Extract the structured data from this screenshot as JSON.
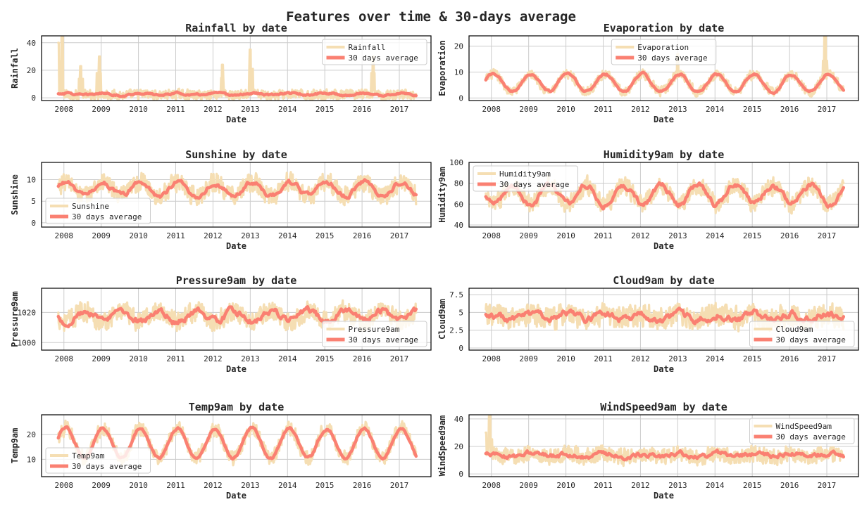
{
  "title": "Features over time & 30-days average",
  "colors": {
    "raw": "#f5deb3",
    "avg": "#fa8072",
    "grid": "#cccccc",
    "frame": "#000000"
  },
  "chart_data": [
    {
      "type": "line",
      "title": "Rainfall by date",
      "xlabel": "Date",
      "ylabel": "Rainfall",
      "x_range": [
        2007.4,
        2017.85
      ],
      "ylim": [
        -2,
        45
      ],
      "yticks": [
        0,
        20,
        40
      ],
      "xticks": [
        2008,
        2009,
        2010,
        2011,
        2012,
        2013,
        2014,
        2015,
        2016,
        2017
      ],
      "legend": "upper right",
      "series": [
        {
          "name": "Rainfall",
          "x_start": 2007.85,
          "x_end": 2017.45,
          "baseline": 2.2,
          "seasonal_amp": 0.3,
          "noise": 5,
          "spikes": [
            [
              2007.85,
              40
            ],
            [
              2007.95,
              44
            ],
            [
              2008.45,
              23
            ],
            [
              2008.95,
              30
            ],
            [
              2012.25,
              24
            ],
            [
              2013.0,
              35
            ],
            [
              2016.3,
              30
            ]
          ]
        },
        {
          "name": "30 days average",
          "x_start": 2007.85,
          "x_end": 2017.45,
          "baseline": 2.6,
          "seasonal_amp": 0.8,
          "noise": 0.6
        }
      ]
    },
    {
      "type": "line",
      "title": "Evaporation by date",
      "xlabel": "Date",
      "ylabel": "Evaporation",
      "x_range": [
        2007.4,
        2017.85
      ],
      "ylim": [
        -1,
        24
      ],
      "yticks": [
        0,
        10,
        20
      ],
      "xticks": [
        2008,
        2009,
        2010,
        2011,
        2012,
        2013,
        2014,
        2015,
        2016,
        2017
      ],
      "legend": "upper center",
      "series": [
        {
          "name": "Evaporation",
          "x_start": 2007.85,
          "x_end": 2017.45,
          "baseline": 5.8,
          "seasonal_amp": 3.4,
          "noise": 2.5,
          "spikes": [
            [
              2016.95,
              24
            ],
            [
              2013.0,
              17
            ]
          ]
        },
        {
          "name": "30 days average",
          "x_start": 2007.85,
          "x_end": 2017.45,
          "baseline": 5.8,
          "seasonal_amp": 3.4,
          "noise": 0.4
        }
      ]
    },
    {
      "type": "line",
      "title": "Sunshine by date",
      "xlabel": "Date",
      "ylabel": "Sunshine",
      "x_range": [
        2007.4,
        2017.85
      ],
      "ylim": [
        -1,
        14
      ],
      "yticks": [
        0,
        5,
        10
      ],
      "xticks": [
        2008,
        2009,
        2010,
        2011,
        2012,
        2013,
        2014,
        2015,
        2016,
        2017
      ],
      "legend": "lower left",
      "series": [
        {
          "name": "Sunshine",
          "x_start": 2007.85,
          "x_end": 2017.45,
          "baseline": 7.8,
          "seasonal_amp": 1.6,
          "noise": 3.0
        },
        {
          "name": "30 days average",
          "x_start": 2007.85,
          "x_end": 2017.45,
          "baseline": 7.8,
          "seasonal_amp": 1.6,
          "noise": 0.5
        }
      ]
    },
    {
      "type": "line",
      "title": "Humidity9am by date",
      "xlabel": "Date",
      "ylabel": "Humidity9am",
      "x_range": [
        2007.4,
        2017.85
      ],
      "ylim": [
        38,
        100
      ],
      "yticks": [
        40,
        60,
        80,
        100
      ],
      "xticks": [
        2008,
        2009,
        2010,
        2011,
        2012,
        2013,
        2014,
        2015,
        2016,
        2017
      ],
      "legend": "upper left",
      "series": [
        {
          "name": "Humidity9am",
          "x_start": 2007.85,
          "x_end": 2017.45,
          "baseline": 69,
          "seasonal_amp": -9,
          "noise": 12
        },
        {
          "name": "30 days average",
          "x_start": 2007.85,
          "x_end": 2017.45,
          "baseline": 69,
          "seasonal_amp": -9,
          "noise": 2.5
        }
      ]
    },
    {
      "type": "line",
      "title": "Pressure9am by date",
      "xlabel": "Date",
      "ylabel": "Pressure9am",
      "x_range": [
        2007.4,
        2017.85
      ],
      "ylim": [
        995,
        1036
      ],
      "yticks": [
        1000,
        1020
      ],
      "xticks": [
        2008,
        2009,
        2010,
        2011,
        2012,
        2013,
        2014,
        2015,
        2016,
        2017
      ],
      "legend": "lower right",
      "series": [
        {
          "name": "Pressure9am",
          "x_start": 2007.85,
          "x_end": 2017.45,
          "baseline": 1017.5,
          "seasonal_amp": -3.5,
          "noise": 9
        },
        {
          "name": "30 days average",
          "x_start": 2007.85,
          "x_end": 2017.45,
          "baseline": 1017.5,
          "seasonal_amp": -3.5,
          "noise": 2
        }
      ]
    },
    {
      "type": "line",
      "title": "Cloud9am by date",
      "xlabel": "Date",
      "ylabel": "Cloud9am",
      "x_range": [
        2007.4,
        2017.85
      ],
      "ylim": [
        -0.3,
        8.4
      ],
      "yticks": [
        0.0,
        2.5,
        5.0,
        7.5
      ],
      "xticks": [
        2008,
        2009,
        2010,
        2011,
        2012,
        2013,
        2014,
        2015,
        2016,
        2017
      ],
      "legend": "lower right",
      "series": [
        {
          "name": "Cloud9am",
          "x_start": 2007.85,
          "x_end": 2017.45,
          "baseline": 4.4,
          "seasonal_amp": 0.3,
          "noise": 2.2
        },
        {
          "name": "30 days average",
          "x_start": 2007.85,
          "x_end": 2017.45,
          "baseline": 4.4,
          "seasonal_amp": 0.3,
          "noise": 0.45
        }
      ]
    },
    {
      "type": "line",
      "title": "Temp9am by date",
      "xlabel": "Date",
      "ylabel": "Temp9am",
      "x_range": [
        2007.4,
        2017.85
      ],
      "ylim": [
        3,
        28
      ],
      "yticks": [
        10,
        20
      ],
      "xticks": [
        2008,
        2009,
        2010,
        2011,
        2012,
        2013,
        2014,
        2015,
        2016,
        2017
      ],
      "legend": "lower left",
      "series": [
        {
          "name": "Temp9am",
          "x_start": 2007.85,
          "x_end": 2017.45,
          "baseline": 16.5,
          "seasonal_amp": 6,
          "noise": 4
        },
        {
          "name": "30 days average",
          "x_start": 2007.85,
          "x_end": 2017.45,
          "baseline": 16.5,
          "seasonal_amp": 6,
          "noise": 0.5
        }
      ]
    },
    {
      "type": "line",
      "title": "WindSpeed9am by date",
      "xlabel": "Date",
      "ylabel": "WindSpeed9am",
      "x_range": [
        2007.4,
        2017.85
      ],
      "ylim": [
        -2,
        43
      ],
      "yticks": [
        0,
        20,
        40
      ],
      "xticks": [
        2008,
        2009,
        2010,
        2011,
        2012,
        2013,
        2014,
        2015,
        2016,
        2017
      ],
      "legend": "upper right",
      "series": [
        {
          "name": "WindSpeed9am",
          "x_start": 2007.85,
          "x_end": 2017.45,
          "baseline": 13.5,
          "seasonal_amp": 1,
          "noise": 8,
          "spikes": [
            [
              2007.95,
              42
            ],
            [
              2007.85,
              30
            ]
          ]
        },
        {
          "name": "30 days average",
          "x_start": 2007.85,
          "x_end": 2017.45,
          "baseline": 13.5,
          "seasonal_amp": 1,
          "noise": 1.6
        }
      ]
    }
  ]
}
